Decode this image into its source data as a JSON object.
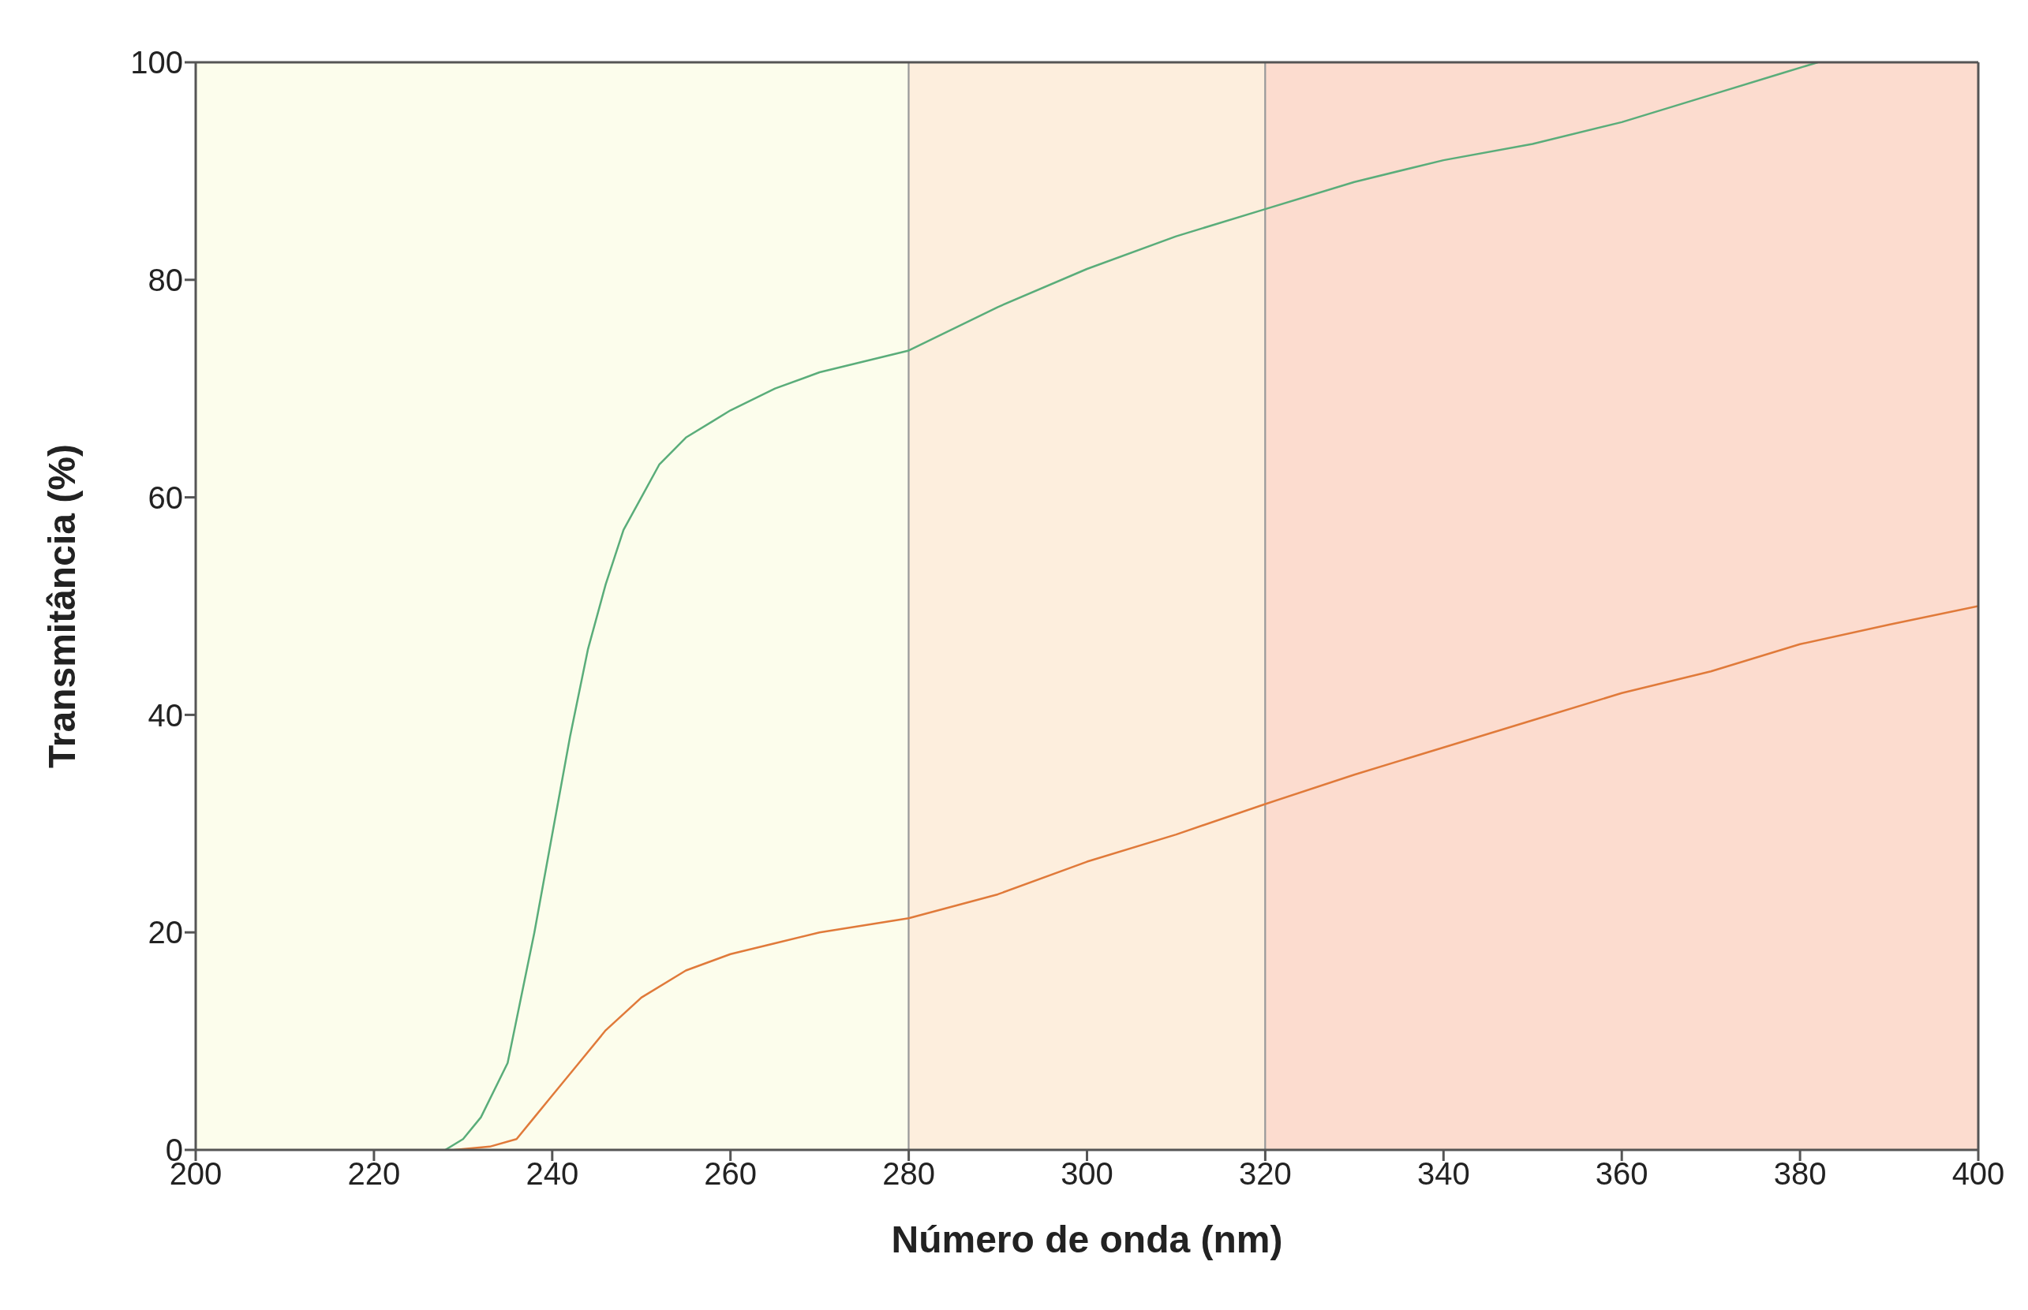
{
  "chart_data": {
    "type": "line",
    "xlabel": "Número de onda (nm)",
    "ylabel": "Transmitância (%)",
    "xlim": [
      200,
      400
    ],
    "xticks": [
      200,
      220,
      240,
      260,
      280,
      300,
      320,
      340,
      360,
      380,
      400
    ],
    "ylim": [
      0,
      100
    ],
    "yticks": [
      0,
      20,
      40,
      60,
      80,
      100
    ],
    "marker": "none",
    "line_style": "solid",
    "bands": [
      {
        "axis": "x",
        "from": 200,
        "to": 280,
        "color": "#fcfdec"
      },
      {
        "axis": "x",
        "from": 280,
        "to": 320,
        "color": "#fdeedd"
      },
      {
        "axis": "x",
        "from": 320,
        "to": 400,
        "color": "#fcdccf"
      }
    ],
    "series": [
      {
        "color": "#5aad7a",
        "x": [
          228,
          230,
          232,
          235,
          238,
          240,
          242,
          244,
          246,
          248,
          250,
          252,
          255,
          258,
          260,
          265,
          270,
          275,
          280,
          290,
          300,
          310,
          320,
          330,
          340,
          350,
          360,
          370,
          378,
          382
        ],
        "values": [
          0,
          1,
          3,
          8,
          20,
          29,
          38,
          46,
          52,
          57,
          60,
          63,
          65.5,
          67,
          68,
          70,
          71.5,
          72.5,
          73.5,
          77.5,
          81,
          84,
          86.5,
          89,
          91,
          92.5,
          94.5,
          97,
          99,
          100
        ]
      },
      {
        "color": "#e07a3a",
        "x": [
          229,
          233,
          236,
          238,
          240,
          243,
          246,
          250,
          255,
          260,
          265,
          270,
          280,
          290,
          300,
          310,
          320,
          330,
          340,
          350,
          360,
          370,
          380,
          390,
          400
        ],
        "values": [
          0,
          0.3,
          1,
          3,
          5,
          8,
          11,
          14,
          16.5,
          18,
          19,
          20,
          21.3,
          23.5,
          26.5,
          29,
          31.8,
          34.5,
          37,
          39.5,
          42,
          44,
          46.5,
          48.3,
          50
        ]
      }
    ]
  }
}
